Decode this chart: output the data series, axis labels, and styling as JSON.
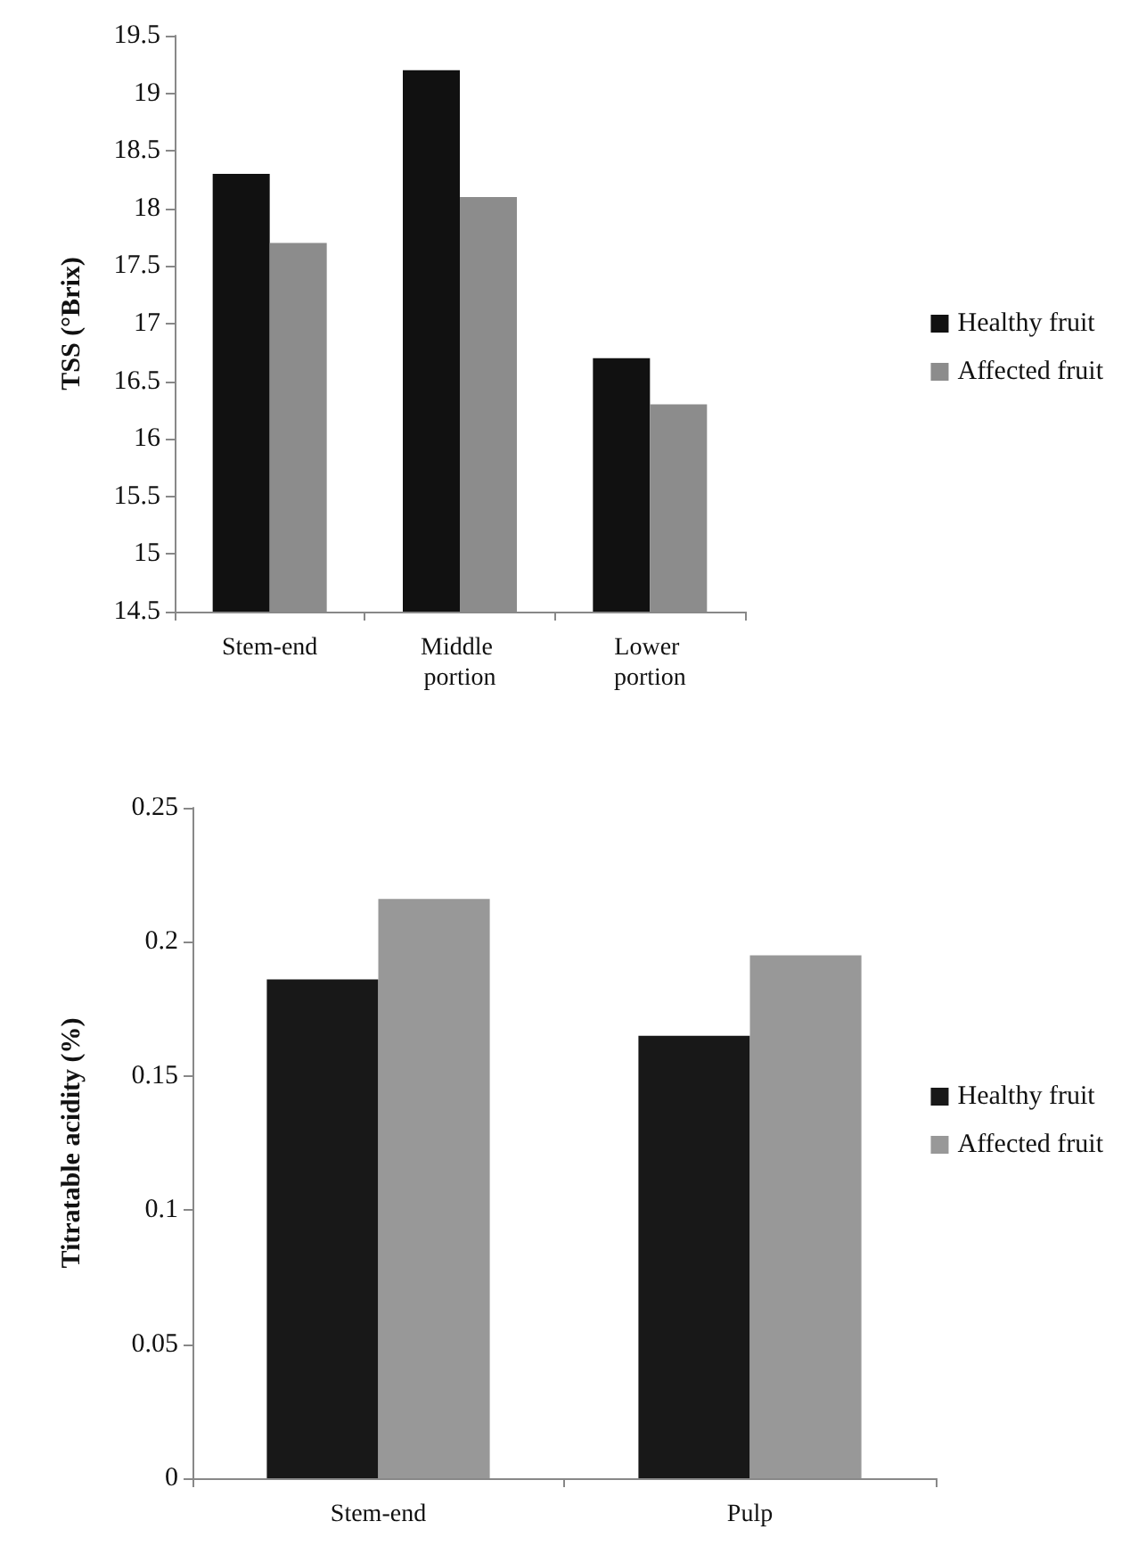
{
  "chart_data": [
    {
      "type": "bar",
      "ylabel": "TSS (°Brix)",
      "categories": [
        "Stem-end",
        "Middle portion",
        "Lower portion"
      ],
      "series": [
        {
          "name": "Healthy fruit",
          "color": "#111111",
          "values": [
            18.3,
            19.2,
            16.7
          ]
        },
        {
          "name": "Affected fruit",
          "color": "#8c8c8c",
          "values": [
            17.7,
            18.1,
            16.3
          ]
        }
      ],
      "ylim": [
        14.5,
        19.5
      ],
      "yticks": [
        14.5,
        15,
        15.5,
        16,
        16.5,
        17,
        17.5,
        18,
        18.5,
        19,
        19.5
      ],
      "grid": false,
      "legend": "right"
    },
    {
      "type": "bar",
      "ylabel": "Titratable acidity (%)",
      "categories": [
        "Stem-end",
        "Pulp"
      ],
      "series": [
        {
          "name": "Healthy fruit",
          "color": "#181818",
          "values": [
            0.186,
            0.165
          ]
        },
        {
          "name": "Affected fruit",
          "color": "#989898",
          "values": [
            0.216,
            0.195
          ]
        }
      ],
      "ylim": [
        0,
        0.25
      ],
      "yticks": [
        0,
        0.05,
        0.1,
        0.15,
        0.2,
        0.25
      ],
      "grid": false,
      "legend": "right"
    }
  ]
}
